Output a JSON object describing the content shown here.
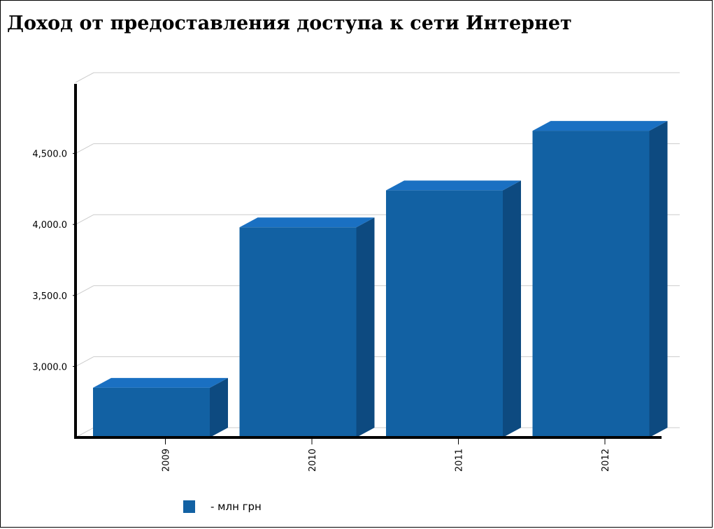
{
  "chart_data": {
    "type": "bar",
    "title": "Доход от предоставления доступа к сети Интернет",
    "categories": [
      "2009",
      "2010",
      "2011",
      "2012"
    ],
    "series": [
      {
        "name": "- млн грн",
        "values": [
          2850,
          3980,
          4240,
          4660
        ]
      }
    ],
    "ylim": [
      2500,
      5000
    ],
    "yticks": [
      3000,
      3500,
      4000,
      4500
    ],
    "ytick_labels": [
      "3,000.0",
      "3,500.0",
      "4,000.0",
      "4,500.0"
    ],
    "grid": true,
    "style": "3d",
    "legend": "bottom-left",
    "colors": {
      "bar_front": "#1261a3",
      "bar_top": "#1a70c2",
      "bar_side": "#0d4a80",
      "grid": "#cccccc",
      "axis": "#000000"
    }
  }
}
